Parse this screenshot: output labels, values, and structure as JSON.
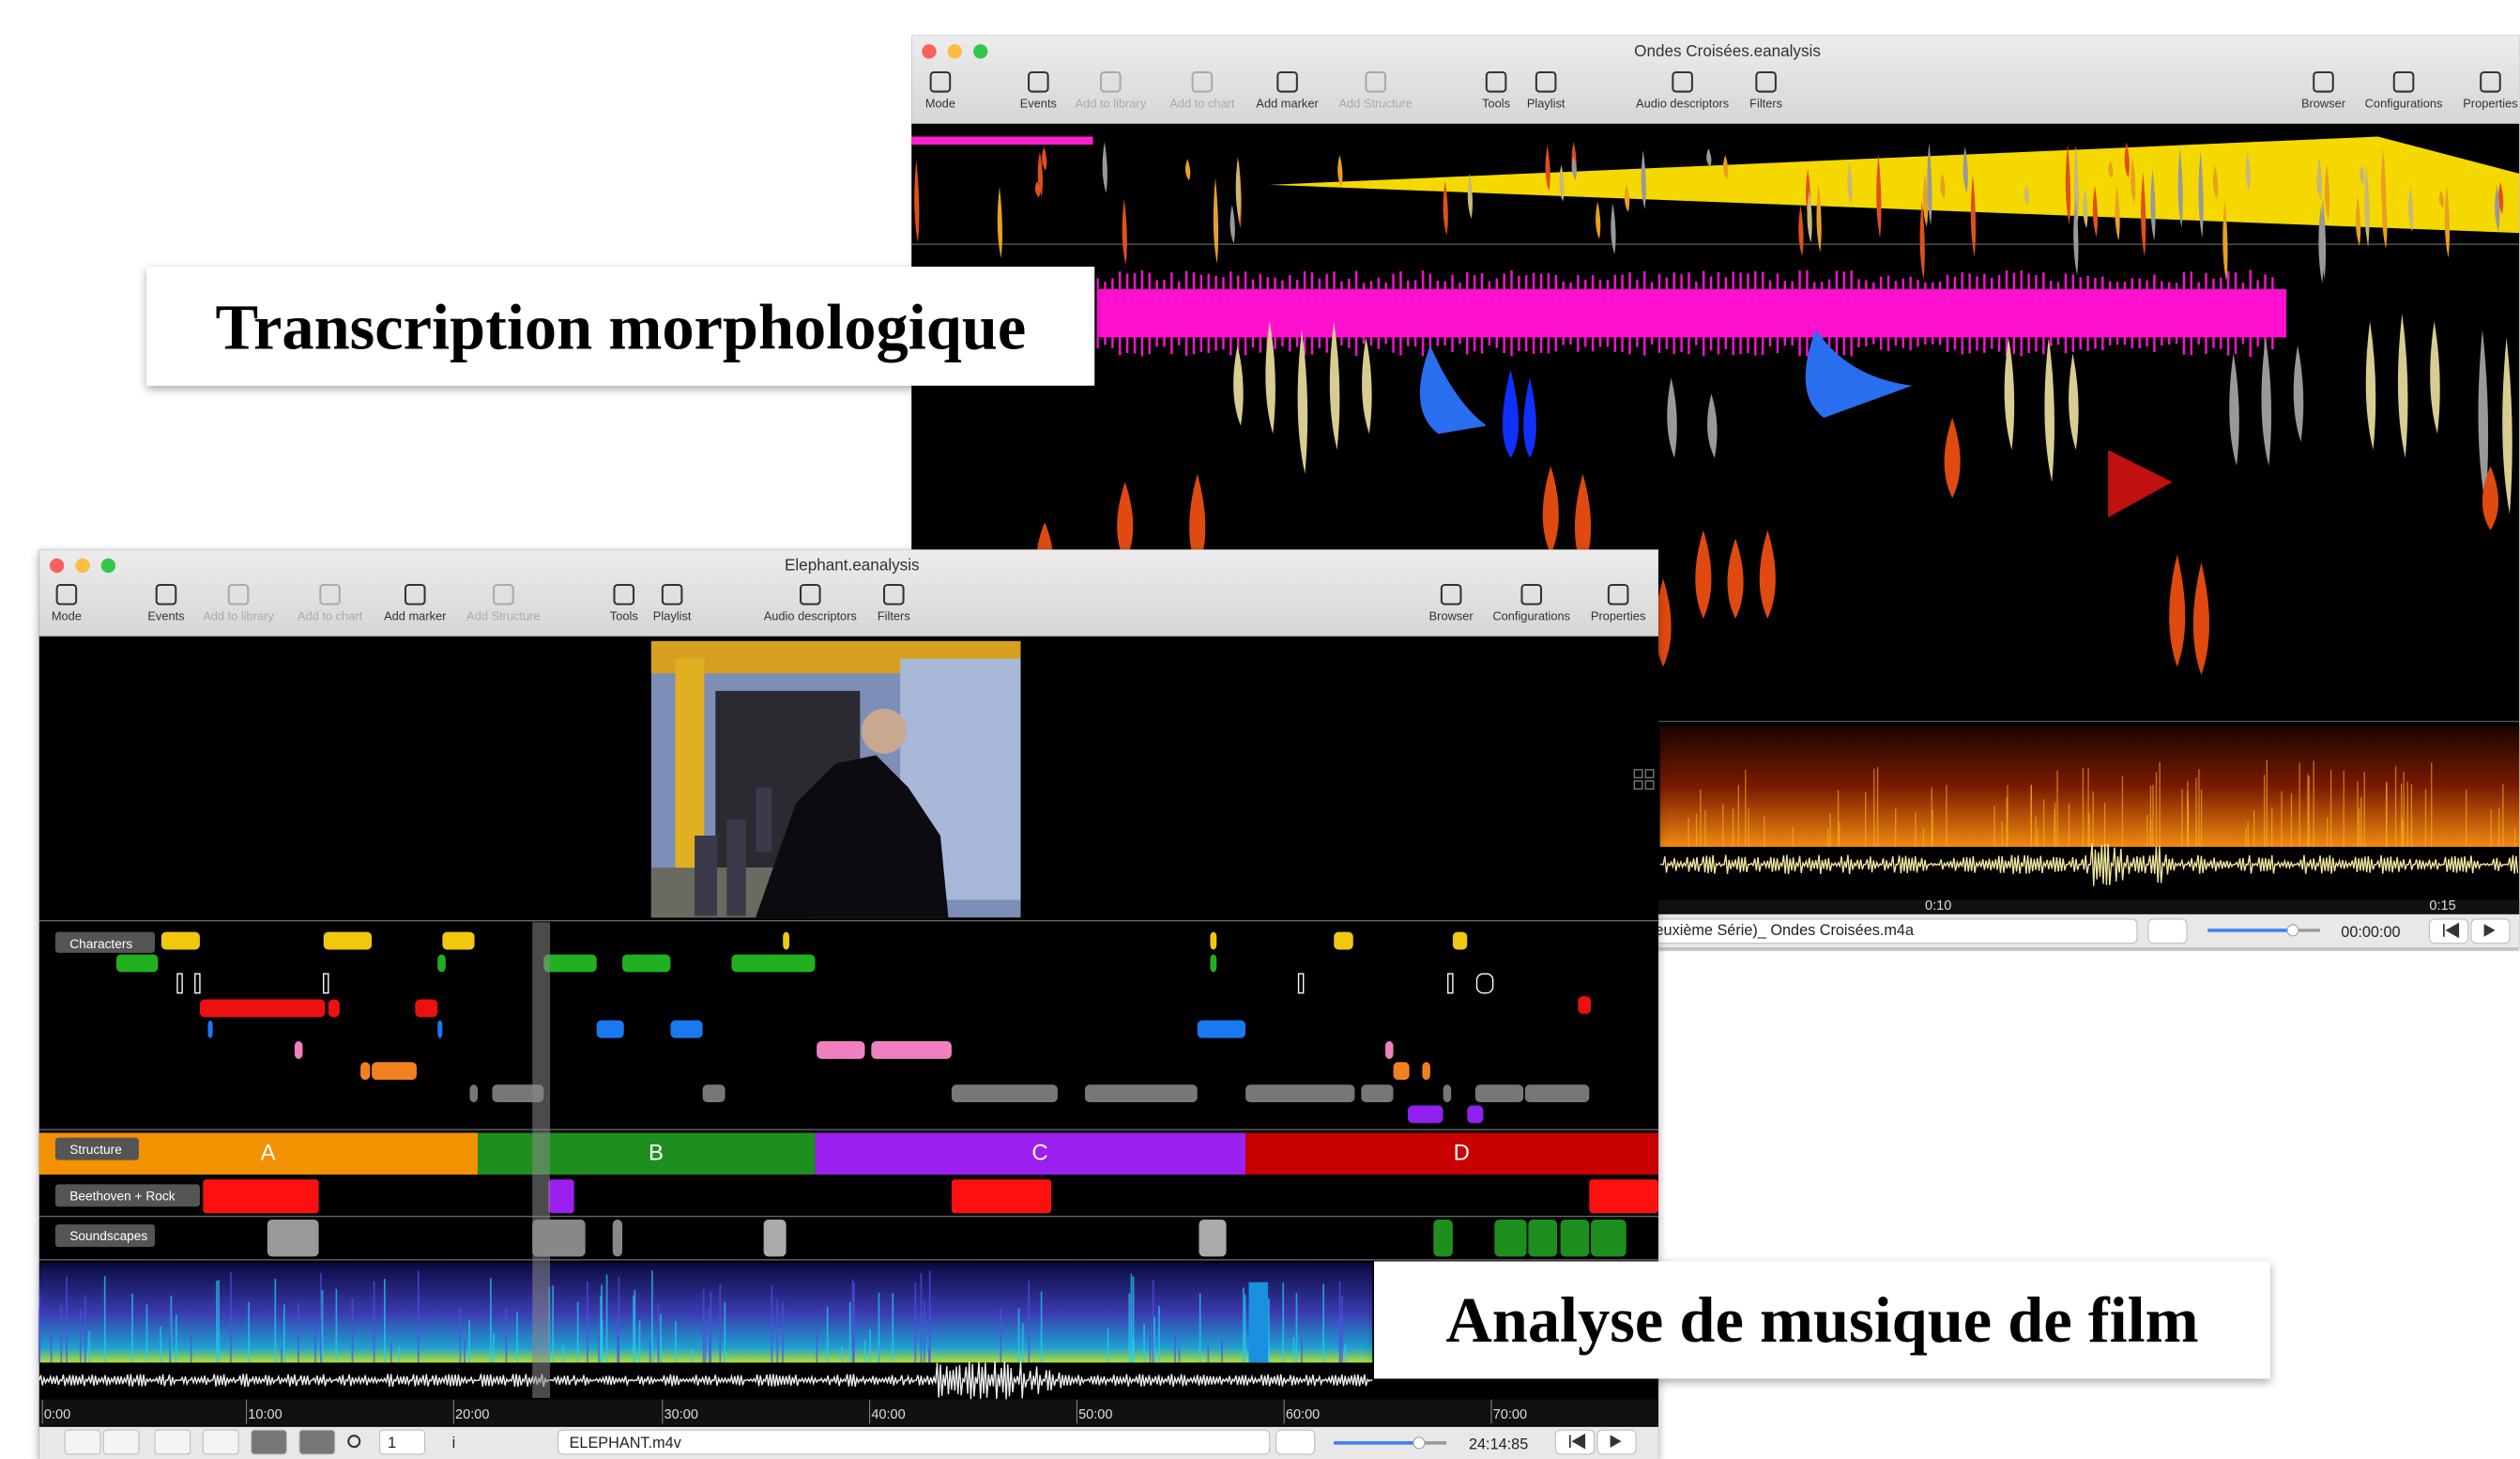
{
  "windows": [
    {
      "title": "Ondes Croisées.eanalysis",
      "toolbar": [
        "Mode",
        "Events",
        "Add to library",
        "Add to chart",
        "Add marker",
        "Add Structure",
        "Tools",
        "Playlist",
        "Audio descriptors",
        "Filters",
        "Browser",
        "Configurations",
        "Properties"
      ],
      "time_labels": [
        "0:10",
        "0:15"
      ],
      "file": "euxième Série)_ Ondes Croisées.m4a",
      "time": "00:00:00"
    },
    {
      "title": "Elephant.eanalysis",
      "toolbar": [
        "Mode",
        "Events",
        "Add to library",
        "Add to chart",
        "Add marker",
        "Add Structure",
        "Tools",
        "Playlist",
        "Audio descriptors",
        "Filters",
        "Browser",
        "Configurations",
        "Properties"
      ],
      "tracks": [
        "Characters",
        "Structure",
        "Beethoven + Rock",
        "Soundscapes"
      ],
      "sections": [
        "A",
        "B",
        "C",
        "D"
      ],
      "time_labels": [
        "0:00",
        "10:00",
        "20:00",
        "30:00",
        "40:00",
        "50:00",
        "60:00",
        "70:00"
      ],
      "file": "ELEPHANT.m4v",
      "time": "24:14:85",
      "zoom": "1",
      "info": "i"
    }
  ],
  "captions": [
    "Transcription morphologique",
    "Analyse de musique de film"
  ]
}
